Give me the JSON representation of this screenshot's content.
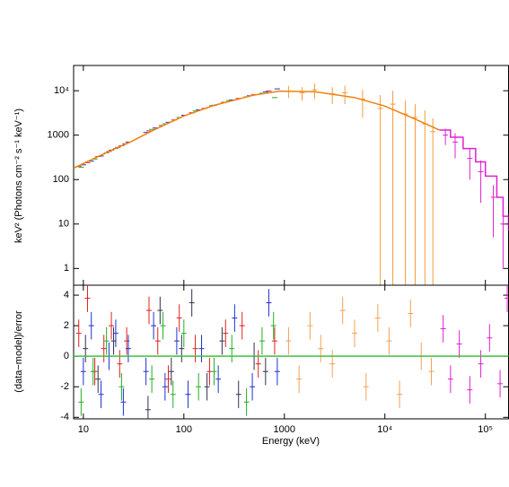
{
  "chart_data": [
    {
      "type": "line",
      "ylabel": "keV² (Photons cm⁻² s⁻¹ keV⁻¹)",
      "xscale": "log",
      "yscale": "log",
      "xlim": [
        8,
        170000
      ],
      "ylim": [
        0.42,
        37000
      ],
      "xticks": [
        10,
        100,
        1000,
        10000,
        100000
      ],
      "xtick_labels": false,
      "yticks": [
        1,
        10,
        100,
        1000,
        {
          "value": 10000,
          "label": "10⁴"
        }
      ],
      "series": [
        {
          "style": "points",
          "color": "#e0201c",
          "x": [
            9,
            11,
            14,
            18,
            22,
            26,
            45,
            60,
            80,
            120,
            160,
            250,
            350,
            500,
            700
          ],
          "values": [
            200,
            240,
            330,
            430,
            530,
            640,
            1250,
            1650,
            2200,
            3200,
            4000,
            5500,
            6700,
            8200,
            9800
          ]
        },
        {
          "style": "points",
          "color": "#2030d0",
          "x": [
            10,
            12,
            15,
            19,
            24,
            28,
            42,
            52,
            70,
            100,
            140,
            200,
            300,
            450,
            650,
            850
          ],
          "values": [
            215,
            260,
            340,
            460,
            580,
            700,
            1150,
            1450,
            1950,
            2800,
            3700,
            4700,
            6200,
            7700,
            9500,
            11000
          ]
        },
        {
          "style": "points",
          "color": "#20b020",
          "x": [
            9.5,
            13,
            17,
            21,
            48,
            65,
            90,
            130,
            190,
            280,
            420,
            600,
            800
          ],
          "values": [
            190,
            290,
            400,
            500,
            1350,
            1800,
            2500,
            3500,
            4600,
            6000,
            7300,
            8800,
            7000
          ]
        },
        {
          "style": "points",
          "color": "#f59a3a",
          "x": [
            1100,
            1500,
            2000,
            3000,
            4000,
            6000,
            9000,
            12000,
            16000,
            20000,
            25000,
            30000
          ],
          "values": [
            9800,
            9000,
            10500,
            8500,
            9000,
            6500,
            4000,
            5000,
            3000,
            2500,
            1800,
            1200
          ],
          "errors": [
            3000,
            3000,
            4000,
            3500,
            4000,
            4000,
            4000,
            5000,
            3000,
            2500,
            1800,
            1200
          ]
        },
        {
          "style": "points",
          "color": "#e020d0",
          "x": [
            40000,
            50000,
            70000,
            90000,
            120000,
            150000
          ],
          "values": [
            1000,
            700,
            300,
            150,
            40,
            10
          ],
          "errors": [
            400,
            400,
            200,
            120,
            35,
            9
          ]
        },
        {
          "style": "line",
          "color": "#f08010",
          "x": [
            8,
            10,
            20,
            30,
            50,
            100,
            200,
            500,
            900,
            2000,
            5000,
            10000,
            20000,
            35000
          ],
          "values": [
            180,
            230,
            480,
            720,
            1300,
            2700,
            4700,
            8000,
            9800,
            9500,
            7000,
            4500,
            2300,
            1300
          ]
        },
        {
          "style": "steps",
          "color": "#e020d0",
          "x": [
            35000,
            45000,
            60000,
            80000,
            100000,
            130000,
            150000,
            170000
          ],
          "values": [
            1300,
            900,
            500,
            250,
            120,
            40,
            15,
            7
          ]
        }
      ]
    },
    {
      "type": "line",
      "xlabel": "Energy (keV)",
      "ylabel": "(data−model)/error",
      "xscale": "log",
      "yscale": "linear",
      "xlim": [
        8,
        170000
      ],
      "ylim": [
        -4.1,
        4.65
      ],
      "xticks": [
        10,
        100,
        1000,
        {
          "value": 10000,
          "label": "10⁴"
        },
        {
          "value": 100000,
          "label": "10⁵"
        }
      ],
      "xtick_labels": true,
      "yticks": [
        -4,
        -2,
        0,
        2,
        4
      ],
      "series": [
        {
          "style": "points",
          "color": "#e0201c",
          "yerr": 0.9,
          "x": [
            9,
            11,
            13,
            16,
            19,
            23,
            27,
            45,
            55,
            70,
            90,
            130,
            180,
            260,
            380,
            550,
            800
          ],
          "values": [
            1.5,
            3.8,
            -1,
            0.5,
            2,
            -0.5,
            1,
            3,
            1,
            -1.5,
            2.5,
            0.5,
            -1,
            1.5,
            2,
            -0.5,
            1
          ]
        },
        {
          "style": "points",
          "color": "#2030d0",
          "yerr": 0.9,
          "x": [
            10,
            12,
            15,
            18,
            21,
            25,
            28,
            42,
            50,
            65,
            85,
            110,
            150,
            220,
            320,
            480,
            700,
            850
          ],
          "values": [
            -1,
            2,
            -2.5,
            0,
            1.5,
            -3,
            0.5,
            -1,
            2,
            -2,
            1,
            -2.5,
            0.5,
            -1.5,
            2.5,
            -2,
            3.5,
            -1
          ]
        },
        {
          "style": "points",
          "color": "#20b020",
          "yerr": 0.9,
          "x": [
            9.5,
            12.5,
            17,
            24,
            48,
            62,
            78,
            100,
            140,
            200,
            300,
            420,
            600,
            780
          ],
          "values": [
            -3,
            -1,
            1,
            -2,
            -1.5,
            2,
            -2.5,
            1.5,
            -2,
            -1,
            0.5,
            -3,
            1,
            2
          ]
        },
        {
          "style": "points",
          "color": "#303050",
          "yerr": 0.9,
          "x": [
            10.5,
            14,
            20,
            44,
            58,
            75,
            95,
            120,
            170,
            240,
            350,
            500,
            650
          ],
          "values": [
            0.5,
            -1.5,
            1,
            -3.5,
            3,
            -1,
            0.5,
            3.5,
            -2,
            1,
            -2.5,
            0,
            -1
          ]
        },
        {
          "style": "points",
          "color": "#f5a050",
          "yerr": 0.9,
          "x": [
            1100,
            1400,
            1800,
            2300,
            3000,
            3800,
            5000,
            6500,
            8500,
            11000,
            14000,
            18000,
            23000,
            29000
          ],
          "values": [
            1,
            -1.5,
            2,
            0.5,
            -0.5,
            3,
            1.5,
            -2,
            2.5,
            1,
            -2.5,
            2.8,
            0,
            -1
          ]
        },
        {
          "style": "points",
          "color": "#e020d0",
          "yerr": 0.9,
          "x": [
            38000,
            45000,
            55000,
            70000,
            90000,
            110000,
            140000,
            165000
          ],
          "values": [
            1.8,
            -1.5,
            0.8,
            -2.2,
            -0.5,
            1.2,
            -1.8,
            3.8
          ]
        },
        {
          "style": "line",
          "color": "#40c040",
          "x": [
            8,
            170000
          ],
          "values": [
            0,
            0
          ]
        }
      ]
    }
  ]
}
